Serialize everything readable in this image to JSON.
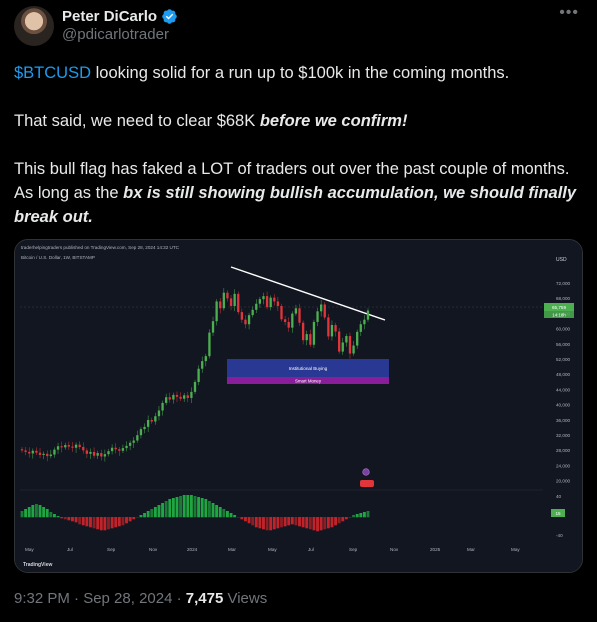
{
  "author": {
    "name": "Peter DiCarlo",
    "handle": "@pdicarlotrader"
  },
  "tweet": {
    "cashtag": "$BTCUSD",
    "line1_rest": " looking solid for a run up to $100k in the coming months.",
    "p2_plain": "That said, we need to clear $68K ",
    "p2_emph": "before we confirm!",
    "p3_plain": "This bull flag has faked a LOT of traders out over the past couple of months. As long as the ",
    "p3_emph": "bx is still showing bullish accumulation, we should finally break out."
  },
  "chart": {
    "publisher": "traderhelpingtraders published on TradingView.com, Sep 28, 2024 14:32 UTC",
    "symbol": "Bitcoin / U.S. Dollar, 1W, BITSTAMP",
    "currency": "USD",
    "price_ticks": [
      "72,000",
      "68,000",
      "64,000",
      "60,000",
      "56,000",
      "52,000",
      "48,000",
      "44,000",
      "40,000",
      "36,000",
      "32,000",
      "28,000",
      "24,000",
      "20,000"
    ],
    "osc_ticks": [
      "40",
      "0",
      "-40"
    ],
    "price_badge_top": "65,759",
    "price_badge_bottom": "14:18h",
    "osc_badge": "15",
    "x_labels": [
      "May",
      "Jul",
      "Sep",
      "Nov",
      "2024",
      "Mar",
      "May",
      "Jul",
      "Sep",
      "Nov",
      "2025",
      "Mar",
      "May"
    ],
    "zone1_label": "Institutional Buying",
    "zone2_label": "Smart Money",
    "brand": "TradingView",
    "colors": {
      "up": "#4caf50",
      "down": "#e0353b",
      "trendline": "#ffffff",
      "zone1": "#2a3a9a",
      "zone2": "#8a1e9a"
    }
  },
  "meta": {
    "time": "9:32 PM · Sep 28, 2024 · ",
    "views": "7,475",
    "views_label": " Views"
  }
}
